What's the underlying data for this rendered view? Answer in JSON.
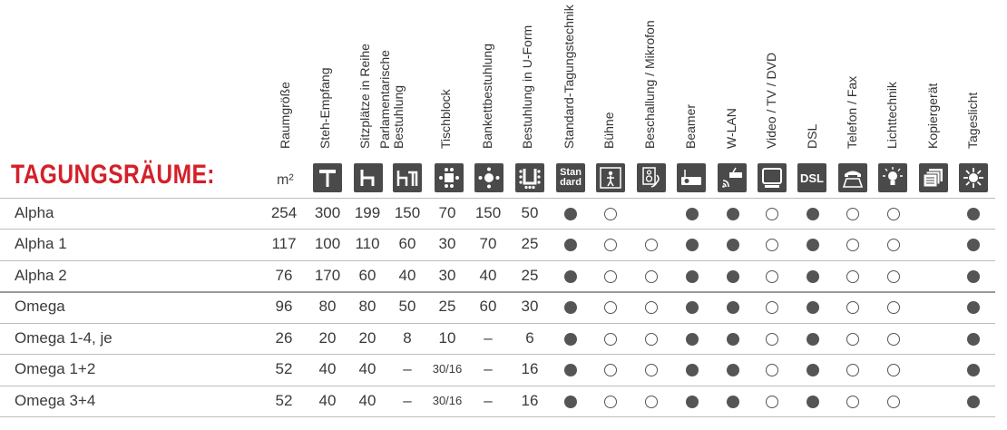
{
  "title": "TAGUNGSRÄUME:",
  "unit": "m²",
  "columns": [
    {
      "label": "Raumgröße",
      "icon": "none"
    },
    {
      "label": "Steh-Empfang",
      "icon": "standing-table-icon"
    },
    {
      "label": "Sitzplätze in Reihe",
      "icon": "chair-row-icon"
    },
    {
      "label": "Parlamentarische Bestuhlung",
      "icon": "parliament-seating-icon"
    },
    {
      "label": "Tischblock",
      "icon": "table-block-icon"
    },
    {
      "label": "Bankettbestuhlung",
      "icon": "banquet-icon"
    },
    {
      "label": "Bestuhlung in U-Form",
      "icon": "u-shape-icon"
    },
    {
      "label": "Standard-Tagungstechnik",
      "icon": "standard-icon",
      "icon_text": "Stan dard"
    },
    {
      "label": "Bühne",
      "icon": "stage-icon"
    },
    {
      "label": "Beschallung / Mikrofon",
      "icon": "speaker-icon"
    },
    {
      "label": "Beamer",
      "icon": "projector-icon"
    },
    {
      "label": "W-LAN",
      "icon": "wlan-icon"
    },
    {
      "label": "Video / TV / DVD",
      "icon": "tv-icon"
    },
    {
      "label": "DSL",
      "icon": "dsl-icon",
      "icon_text": "DSL"
    },
    {
      "label": "Telefon / Fax",
      "icon": "phone-icon"
    },
    {
      "label": "Lichttechnik",
      "icon": "light-icon"
    },
    {
      "label": "Kopiergerät",
      "icon": "copier-icon"
    },
    {
      "label": "Tageslicht",
      "icon": "daylight-icon"
    }
  ],
  "rows": [
    {
      "name": "Alpha",
      "values": [
        "254",
        "300",
        "199",
        "150",
        "70",
        "150",
        "50"
      ],
      "features": [
        "full",
        "empty",
        "",
        "full",
        "full",
        "empty",
        "full",
        "empty",
        "empty",
        "",
        "full"
      ]
    },
    {
      "name": "Alpha 1",
      "values": [
        "117",
        "100",
        "110",
        "60",
        "30",
        "70",
        "25"
      ],
      "features": [
        "full",
        "empty",
        "empty",
        "full",
        "full",
        "empty",
        "full",
        "empty",
        "empty",
        "",
        "full"
      ]
    },
    {
      "name": "Alpha 2",
      "values": [
        "76",
        "170",
        "60",
        "40",
        "30",
        "40",
        "25"
      ],
      "features": [
        "full",
        "empty",
        "empty",
        "full",
        "full",
        "empty",
        "full",
        "empty",
        "empty",
        "",
        "full"
      ]
    },
    {
      "name": "Omega",
      "values": [
        "96",
        "80",
        "80",
        "50",
        "25",
        "60",
        "30"
      ],
      "features": [
        "full",
        "empty",
        "empty",
        "full",
        "full",
        "empty",
        "full",
        "empty",
        "empty",
        "",
        "full"
      ]
    },
    {
      "name": "Omega 1-4, je",
      "values": [
        "26",
        "20",
        "20",
        "8",
        "10",
        "–",
        "6"
      ],
      "features": [
        "full",
        "empty",
        "empty",
        "full",
        "full",
        "empty",
        "full",
        "empty",
        "empty",
        "",
        "full"
      ]
    },
    {
      "name": "Omega 1+2",
      "values": [
        "52",
        "40",
        "40",
        "–",
        "30/16",
        "–",
        "16"
      ],
      "features": [
        "full",
        "empty",
        "empty",
        "full",
        "full",
        "empty",
        "full",
        "empty",
        "empty",
        "",
        "full"
      ]
    },
    {
      "name": "Omega 3+4",
      "values": [
        "52",
        "40",
        "40",
        "–",
        "30/16",
        "–",
        "16"
      ],
      "features": [
        "full",
        "empty",
        "empty",
        "full",
        "full",
        "empty",
        "full",
        "empty",
        "empty",
        "",
        "full"
      ]
    }
  ]
}
